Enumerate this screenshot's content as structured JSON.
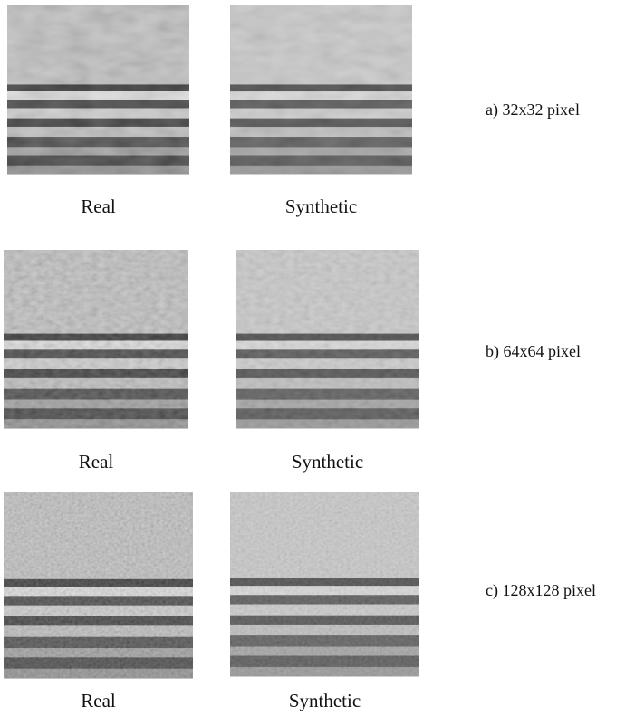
{
  "rows": [
    {
      "real_label": "Real",
      "synthetic_label": "Synthetic",
      "caption": "a) 32x32 pixel"
    },
    {
      "real_label": "Real",
      "synthetic_label": "Synthetic",
      "caption": "b) 64x64 pixel"
    },
    {
      "real_label": "Real",
      "synthetic_label": "Synthetic",
      "caption": "c) 128x128 pixel"
    }
  ]
}
